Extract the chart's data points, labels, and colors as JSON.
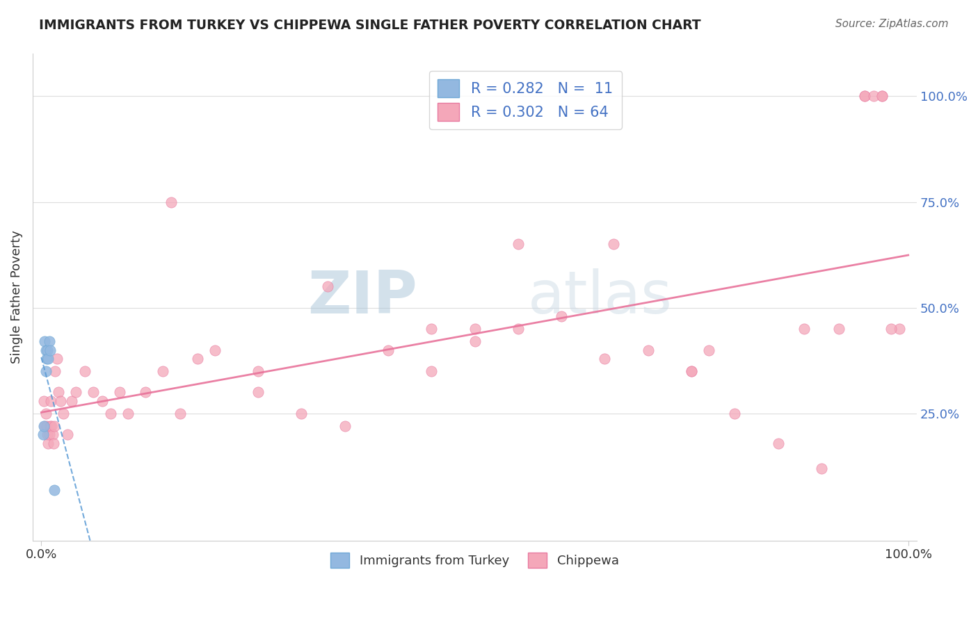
{
  "title": "IMMIGRANTS FROM TURKEY VS CHIPPEWA SINGLE FATHER POVERTY CORRELATION CHART",
  "source": "Source: ZipAtlas.com",
  "ylabel": "Single Father Poverty",
  "watermark_zip": "ZIP",
  "watermark_atlas": "atlas",
  "series1_color": "#93b8e0",
  "series1_edge": "#6fa8d6",
  "series2_color": "#f4a7b9",
  "series2_edge": "#e87aa0",
  "trend1_color": "#5b9bd5",
  "trend2_color": "#e8729a",
  "legend_r1": "R = 0.282",
  "legend_n1": "N =  11",
  "legend_r2": "R = 0.302",
  "legend_n2": "N = 64",
  "legend_color": "#4472c4",
  "turkey_x": [
    0.002,
    0.003,
    0.004,
    0.005,
    0.005,
    0.006,
    0.007,
    0.008,
    0.009,
    0.01,
    0.015
  ],
  "turkey_y": [
    0.2,
    0.22,
    0.42,
    0.4,
    0.35,
    0.38,
    0.4,
    0.38,
    0.42,
    0.4,
    0.07
  ],
  "chippewa_x": [
    0.003,
    0.004,
    0.005,
    0.006,
    0.007,
    0.008,
    0.009,
    0.01,
    0.011,
    0.012,
    0.013,
    0.014,
    0.015,
    0.016,
    0.018,
    0.02,
    0.022,
    0.025,
    0.03,
    0.035,
    0.04,
    0.05,
    0.06,
    0.07,
    0.08,
    0.09,
    0.1,
    0.12,
    0.14,
    0.16,
    0.18,
    0.2,
    0.25,
    0.3,
    0.35,
    0.4,
    0.45,
    0.5,
    0.55,
    0.6,
    0.65,
    0.7,
    0.75,
    0.8,
    0.85,
    0.9,
    0.92,
    0.95,
    0.97,
    0.99,
    0.15,
    0.33,
    0.5,
    0.66,
    0.77,
    0.88,
    0.95,
    0.96,
    0.97,
    0.98,
    0.25,
    0.45,
    0.55,
    0.75
  ],
  "chippewa_y": [
    0.28,
    0.22,
    0.25,
    0.22,
    0.2,
    0.18,
    0.2,
    0.22,
    0.28,
    0.22,
    0.2,
    0.18,
    0.22,
    0.35,
    0.38,
    0.3,
    0.28,
    0.25,
    0.2,
    0.28,
    0.3,
    0.35,
    0.3,
    0.28,
    0.25,
    0.3,
    0.25,
    0.3,
    0.35,
    0.25,
    0.38,
    0.4,
    0.35,
    0.25,
    0.22,
    0.4,
    0.45,
    0.42,
    0.45,
    0.48,
    0.38,
    0.4,
    0.35,
    0.25,
    0.18,
    0.12,
    0.45,
    1.0,
    1.0,
    0.45,
    0.75,
    0.55,
    0.45,
    0.65,
    0.4,
    0.45,
    1.0,
    1.0,
    1.0,
    0.45,
    0.3,
    0.35,
    0.65,
    0.35
  ],
  "ytick_vals": [
    0.25,
    0.5,
    0.75,
    1.0
  ],
  "ytick_labels": [
    "25.0%",
    "50.0%",
    "75.0%",
    "100.0%"
  ],
  "grid_color": "#dddddd",
  "title_color": "#222222",
  "source_color": "#666666",
  "label_color": "#333333",
  "right_tick_color": "#4472c4"
}
